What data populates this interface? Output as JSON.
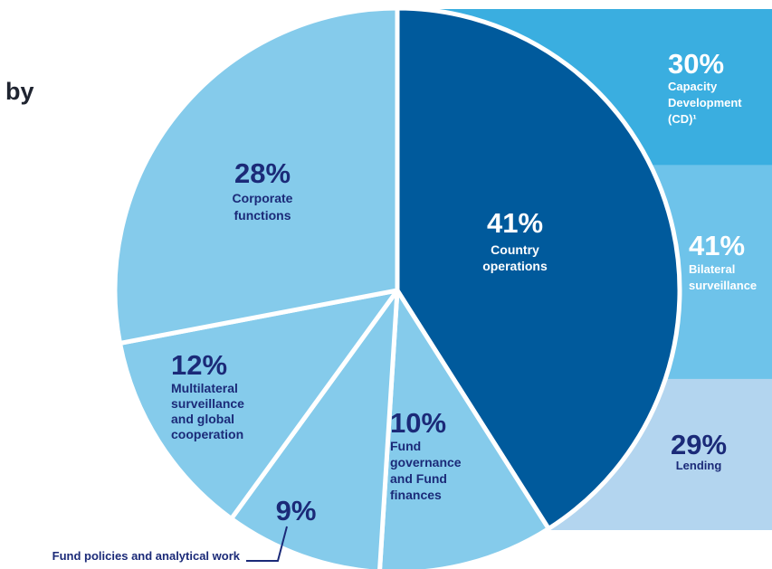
{
  "title_fragment": "by",
  "chart_data": {
    "type": "pie",
    "slices": [
      {
        "pct": "41%",
        "value": 41,
        "label": "Country operations",
        "color": "#005a9c"
      },
      {
        "pct": "10%",
        "value": 10,
        "label": "Fund governance and Fund finances",
        "color": "#85cbeb"
      },
      {
        "pct": "9%",
        "value": 9,
        "label": "Fund policies and analytical work",
        "color": "#85cbeb"
      },
      {
        "pct": "12%",
        "value": 12,
        "label": "Multilateral surveillance and global cooperation",
        "color": "#85cbeb"
      },
      {
        "pct": "28%",
        "value": 28,
        "label": "Corporate functions",
        "color": "#85cbeb"
      }
    ],
    "breakdown": {
      "of": "Country operations",
      "segments": [
        {
          "pct": "30%",
          "value": 30,
          "label": "Capacity Development (CD)¹",
          "color": "#3aaee0"
        },
        {
          "pct": "41%",
          "value": 41,
          "label": "Bilateral surveillance",
          "color": "#6ec3ea"
        },
        {
          "pct": "29%",
          "value": 29,
          "label": "Lending",
          "color": "#b3d5ef"
        }
      ]
    }
  }
}
